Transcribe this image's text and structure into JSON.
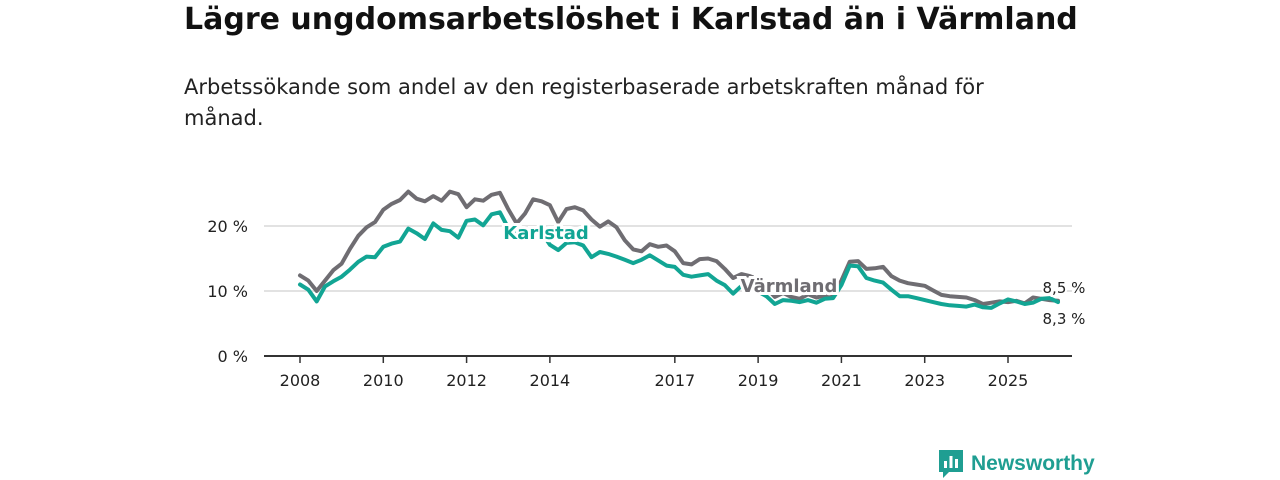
{
  "chart_data": {
    "type": "line",
    "title": "Lägre ungdomsarbetslöshet i Karlstad än i Värmland",
    "subtitle": "Arbetssökande som andel av den registerbaserade arbetskraften månad för månad.",
    "xlabel": "",
    "ylabel": "",
    "xlim": [
      2008.0,
      2026.6
    ],
    "ylim": [
      0,
      20
    ],
    "y_ticks": [
      {
        "value": 0,
        "label": "0 %"
      },
      {
        "value": 10,
        "label": "10 %"
      },
      {
        "value": 20,
        "label": "20 %"
      }
    ],
    "x_ticks": [
      {
        "value": 2008,
        "label": "2008"
      },
      {
        "value": 2010,
        "label": "2010"
      },
      {
        "value": 2012,
        "label": "2012"
      },
      {
        "value": 2014,
        "label": "2014"
      },
      {
        "value": 2017,
        "label": "2017"
      },
      {
        "value": 2019,
        "label": "2019"
      },
      {
        "value": 2021,
        "label": "2021"
      },
      {
        "value": 2023,
        "label": "2023"
      },
      {
        "value": 2025,
        "label": "2025"
      }
    ],
    "grid": true,
    "series": [
      {
        "name": "Värmland",
        "color": "#6f6d72",
        "label": "Värmland",
        "points": [
          [
            2008.0,
            12.4
          ],
          [
            2008.2,
            11.6
          ],
          [
            2008.4,
            10.0
          ],
          [
            2008.6,
            11.6
          ],
          [
            2008.8,
            13.2
          ],
          [
            2009.0,
            14.2
          ],
          [
            2009.2,
            16.5
          ],
          [
            2009.4,
            18.5
          ],
          [
            2009.6,
            19.8
          ],
          [
            2009.8,
            20.6
          ],
          [
            2010.0,
            22.5
          ],
          [
            2010.2,
            23.4
          ],
          [
            2010.4,
            24.0
          ],
          [
            2010.6,
            25.3
          ],
          [
            2010.8,
            24.2
          ],
          [
            2011.0,
            23.8
          ],
          [
            2011.2,
            24.6
          ],
          [
            2011.4,
            23.9
          ],
          [
            2011.6,
            25.3
          ],
          [
            2011.8,
            24.9
          ],
          [
            2012.0,
            22.9
          ],
          [
            2012.2,
            24.1
          ],
          [
            2012.4,
            23.9
          ],
          [
            2012.6,
            24.8
          ],
          [
            2012.8,
            25.1
          ],
          [
            2013.0,
            22.6
          ],
          [
            2013.2,
            20.4
          ],
          [
            2013.4,
            21.9
          ],
          [
            2013.6,
            24.1
          ],
          [
            2013.8,
            23.8
          ],
          [
            2014.0,
            23.2
          ],
          [
            2014.2,
            20.6
          ],
          [
            2014.4,
            22.6
          ],
          [
            2014.6,
            22.9
          ],
          [
            2014.8,
            22.4
          ],
          [
            2015.0,
            21.0
          ],
          [
            2015.2,
            19.9
          ],
          [
            2015.4,
            20.7
          ],
          [
            2015.6,
            19.8
          ],
          [
            2015.8,
            17.8
          ],
          [
            2016.0,
            16.4
          ],
          [
            2016.2,
            16.1
          ],
          [
            2016.4,
            17.2
          ],
          [
            2016.6,
            16.8
          ],
          [
            2016.8,
            17.0
          ],
          [
            2017.0,
            16.1
          ],
          [
            2017.2,
            14.3
          ],
          [
            2017.4,
            14.1
          ],
          [
            2017.6,
            14.9
          ],
          [
            2017.8,
            15.0
          ],
          [
            2018.0,
            14.6
          ],
          [
            2018.2,
            13.4
          ],
          [
            2018.4,
            12.0
          ],
          [
            2018.6,
            12.6
          ],
          [
            2018.8,
            12.3
          ],
          [
            2019.0,
            11.8
          ],
          [
            2019.2,
            10.5
          ],
          [
            2019.4,
            9.1
          ],
          [
            2019.6,
            9.7
          ],
          [
            2019.8,
            9.1
          ],
          [
            2020.0,
            8.8
          ],
          [
            2020.2,
            9.5
          ],
          [
            2020.4,
            9.0
          ],
          [
            2020.6,
            9.3
          ],
          [
            2020.8,
            9.5
          ],
          [
            2021.0,
            11.6
          ],
          [
            2021.2,
            14.5
          ],
          [
            2021.4,
            14.6
          ],
          [
            2021.6,
            13.4
          ],
          [
            2021.8,
            13.5
          ],
          [
            2022.0,
            13.7
          ],
          [
            2022.2,
            12.3
          ],
          [
            2022.4,
            11.6
          ],
          [
            2022.6,
            11.2
          ],
          [
            2022.8,
            11.0
          ],
          [
            2023.0,
            10.8
          ],
          [
            2023.2,
            10.1
          ],
          [
            2023.4,
            9.4
          ],
          [
            2023.6,
            9.2
          ],
          [
            2023.8,
            9.1
          ],
          [
            2024.0,
            9.0
          ],
          [
            2024.2,
            8.6
          ],
          [
            2024.4,
            8.0
          ],
          [
            2024.6,
            8.2
          ],
          [
            2024.8,
            8.4
          ],
          [
            2025.0,
            8.3
          ],
          [
            2025.2,
            8.5
          ],
          [
            2025.4,
            8.1
          ],
          [
            2025.6,
            9.0
          ],
          [
            2025.8,
            8.8
          ],
          [
            2026.0,
            8.6
          ],
          [
            2026.2,
            8.5
          ]
        ]
      },
      {
        "name": "Karlstad",
        "color": "#12a594",
        "label": "Karlstad",
        "points": [
          [
            2008.0,
            11.0
          ],
          [
            2008.2,
            10.2
          ],
          [
            2008.4,
            8.4
          ],
          [
            2008.6,
            10.7
          ],
          [
            2008.8,
            11.5
          ],
          [
            2009.0,
            12.2
          ],
          [
            2009.2,
            13.3
          ],
          [
            2009.4,
            14.5
          ],
          [
            2009.6,
            15.3
          ],
          [
            2009.8,
            15.2
          ],
          [
            2010.0,
            16.8
          ],
          [
            2010.2,
            17.3
          ],
          [
            2010.4,
            17.6
          ],
          [
            2010.6,
            19.6
          ],
          [
            2010.8,
            18.9
          ],
          [
            2011.0,
            18.0
          ],
          [
            2011.2,
            20.4
          ],
          [
            2011.4,
            19.4
          ],
          [
            2011.6,
            19.2
          ],
          [
            2011.8,
            18.2
          ],
          [
            2012.0,
            20.8
          ],
          [
            2012.2,
            21.0
          ],
          [
            2012.4,
            20.1
          ],
          [
            2012.6,
            21.8
          ],
          [
            2012.8,
            22.1
          ],
          [
            2013.0,
            19.7
          ],
          [
            2013.2,
            19.1
          ],
          [
            2013.4,
            18.2
          ],
          [
            2013.6,
            19.3
          ],
          [
            2013.8,
            19.0
          ],
          [
            2014.0,
            17.1
          ],
          [
            2014.2,
            16.3
          ],
          [
            2014.4,
            17.4
          ],
          [
            2014.6,
            17.5
          ],
          [
            2014.8,
            17.0
          ],
          [
            2015.0,
            15.2
          ],
          [
            2015.2,
            16.0
          ],
          [
            2015.4,
            15.7
          ],
          [
            2015.6,
            15.3
          ],
          [
            2015.8,
            14.8
          ],
          [
            2016.0,
            14.3
          ],
          [
            2016.2,
            14.8
          ],
          [
            2016.4,
            15.5
          ],
          [
            2016.6,
            14.7
          ],
          [
            2016.8,
            13.9
          ],
          [
            2017.0,
            13.7
          ],
          [
            2017.2,
            12.5
          ],
          [
            2017.4,
            12.2
          ],
          [
            2017.6,
            12.4
          ],
          [
            2017.8,
            12.6
          ],
          [
            2018.0,
            11.6
          ],
          [
            2018.2,
            10.9
          ],
          [
            2018.4,
            9.6
          ],
          [
            2018.6,
            10.8
          ],
          [
            2018.8,
            10.7
          ],
          [
            2019.0,
            9.9
          ],
          [
            2019.2,
            9.2
          ],
          [
            2019.4,
            8.0
          ],
          [
            2019.6,
            8.6
          ],
          [
            2019.8,
            8.5
          ],
          [
            2020.0,
            8.3
          ],
          [
            2020.2,
            8.6
          ],
          [
            2020.4,
            8.2
          ],
          [
            2020.6,
            8.8
          ],
          [
            2020.8,
            8.9
          ],
          [
            2021.0,
            10.9
          ],
          [
            2021.2,
            13.9
          ],
          [
            2021.4,
            13.8
          ],
          [
            2021.6,
            12.0
          ],
          [
            2021.8,
            11.6
          ],
          [
            2022.0,
            11.3
          ],
          [
            2022.2,
            10.2
          ],
          [
            2022.4,
            9.2
          ],
          [
            2022.6,
            9.2
          ],
          [
            2022.8,
            8.9
          ],
          [
            2023.0,
            8.6
          ],
          [
            2023.2,
            8.3
          ],
          [
            2023.4,
            8.0
          ],
          [
            2023.6,
            7.8
          ],
          [
            2023.8,
            7.7
          ],
          [
            2024.0,
            7.6
          ],
          [
            2024.2,
            7.9
          ],
          [
            2024.4,
            7.5
          ],
          [
            2024.6,
            7.4
          ],
          [
            2024.8,
            8.1
          ],
          [
            2025.0,
            8.7
          ],
          [
            2025.2,
            8.4
          ],
          [
            2025.4,
            8.0
          ],
          [
            2025.6,
            8.2
          ],
          [
            2025.8,
            8.8
          ],
          [
            2026.0,
            8.9
          ],
          [
            2026.2,
            8.3
          ]
        ]
      }
    ],
    "end_labels": [
      {
        "series": "Värmland",
        "text": "8,5 %",
        "position": "above"
      },
      {
        "series": "Karlstad",
        "text": "8,3 %",
        "position": "below"
      }
    ]
  },
  "brand": {
    "name": "Newsworthy",
    "icon": "newsworthy-logo-icon",
    "color": "#1f9e92"
  }
}
